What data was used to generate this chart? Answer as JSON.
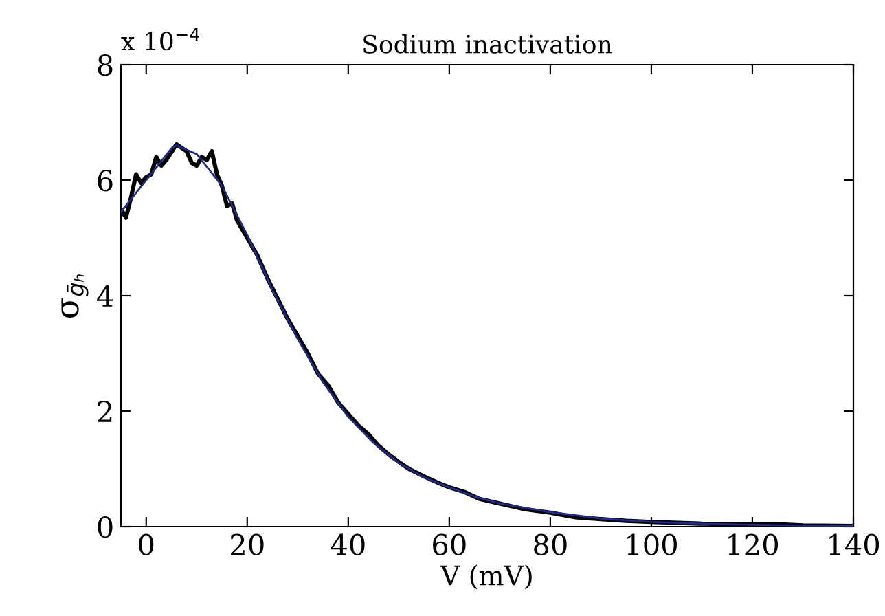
{
  "chart_data": {
    "type": "line",
    "title": "Sodium inactivation",
    "xlabel": "V (mV)",
    "ylabel": "σ$_{ḡₕ}$",
    "annotations": [
      "x 10$^{−4}$"
    ],
    "xlim": [
      -5,
      140
    ],
    "xticks": [
      0,
      20,
      40,
      60,
      80,
      100,
      120,
      140
    ],
    "ylim": [
      0,
      8
    ],
    "yticks": [
      0,
      2,
      4,
      6,
      8
    ],
    "grid": false,
    "legend": false,
    "series": [
      {
        "color": "#1f2a8a",
        "x": [
          -5,
          0,
          5,
          6,
          10,
          15,
          20,
          25,
          30,
          35,
          40,
          45,
          50,
          55,
          60,
          65,
          70,
          80,
          90,
          100,
          110,
          120,
          130,
          140
        ],
        "values": [
          5.45,
          6.0,
          6.55,
          6.6,
          6.45,
          5.9,
          5.05,
          4.1,
          3.25,
          2.5,
          1.9,
          1.45,
          1.1,
          0.85,
          0.68,
          0.52,
          0.4,
          0.25,
          0.14,
          0.08,
          0.05,
          0.03,
          0.02,
          0.01
        ]
      },
      {
        "color": "#000000",
        "x": [
          -5,
          -4,
          -3,
          -2,
          -1,
          0,
          1,
          2,
          3,
          4,
          6,
          8,
          9,
          10,
          11,
          12,
          13,
          14,
          15,
          16,
          17,
          18,
          20,
          22,
          24,
          26,
          28,
          30,
          32,
          34,
          36,
          38,
          40,
          41,
          42,
          44,
          46,
          48,
          50,
          52,
          55,
          58,
          60,
          63,
          66,
          70,
          75,
          80,
          85,
          90,
          95,
          100,
          110,
          120,
          125,
          130,
          140
        ],
        "values": [
          5.5,
          5.35,
          5.7,
          6.1,
          5.95,
          6.05,
          6.1,
          6.4,
          6.25,
          6.35,
          6.62,
          6.5,
          6.3,
          6.25,
          6.4,
          6.35,
          6.5,
          6.1,
          5.9,
          5.55,
          5.6,
          5.3,
          5.0,
          4.7,
          4.3,
          3.95,
          3.6,
          3.3,
          3.0,
          2.65,
          2.45,
          2.15,
          1.95,
          1.85,
          1.75,
          1.6,
          1.4,
          1.25,
          1.12,
          1.0,
          0.87,
          0.75,
          0.68,
          0.6,
          0.48,
          0.4,
          0.3,
          0.24,
          0.16,
          0.13,
          0.1,
          0.08,
          0.05,
          0.04,
          0.04,
          0.02,
          0.01
        ]
      }
    ]
  }
}
